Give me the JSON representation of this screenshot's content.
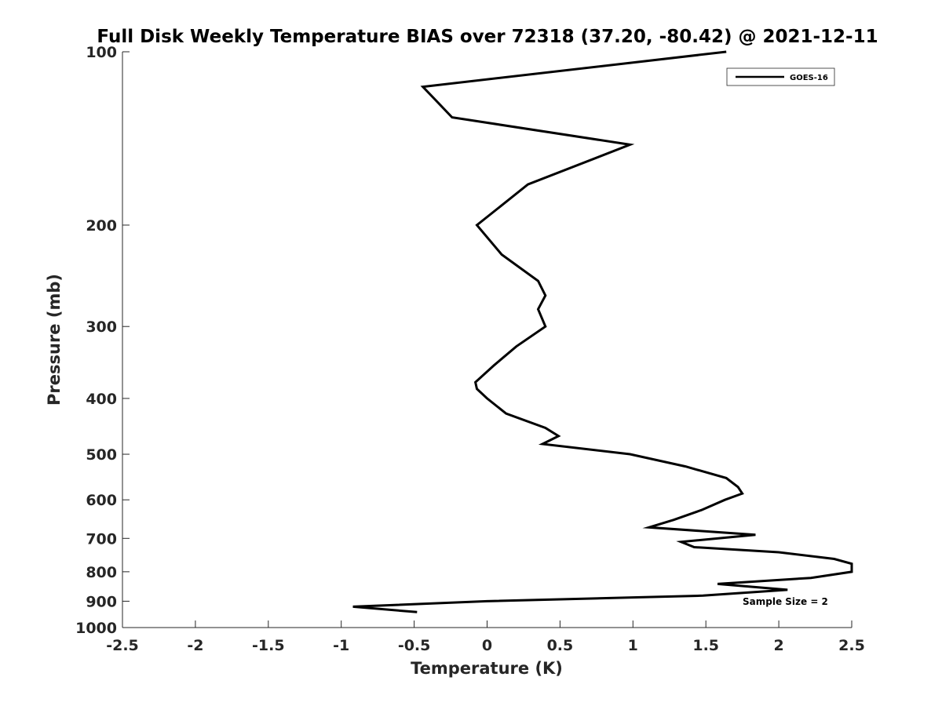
{
  "chart_data": {
    "type": "line",
    "title": "Full Disk Weekly Temperature BIAS over 72318 (37.20, -80.42) @ 2021-12-11",
    "xlabel": "Temperature (K)",
    "ylabel": "Pressure (mb)",
    "xlim": [
      -2.5,
      2.5
    ],
    "ylim": [
      1000,
      100
    ],
    "y_scale": "log",
    "y_reversed": true,
    "x_ticks": [
      "-2.5",
      "-2",
      "-1.5",
      "-1",
      "-0.5",
      "0",
      "0.5",
      "1",
      "1.5",
      "2",
      "2.5"
    ],
    "y_ticks": [
      "100",
      "200",
      "300",
      "400",
      "500",
      "600",
      "700",
      "800",
      "900",
      "1000"
    ],
    "grid": false,
    "legend_position": "top-right",
    "annotation": "Sample Size = 2",
    "series": [
      {
        "name": "GOES-16",
        "color": "#000000",
        "points": [
          {
            "x": 1.64,
            "p": 100
          },
          {
            "x": -0.44,
            "p": 115
          },
          {
            "x": -0.24,
            "p": 130
          },
          {
            "x": 0.98,
            "p": 145
          },
          {
            "x": 0.28,
            "p": 170
          },
          {
            "x": -0.07,
            "p": 200
          },
          {
            "x": 0.1,
            "p": 225
          },
          {
            "x": 0.35,
            "p": 250
          },
          {
            "x": 0.4,
            "p": 265
          },
          {
            "x": 0.35,
            "p": 280
          },
          {
            "x": 0.4,
            "p": 300
          },
          {
            "x": 0.2,
            "p": 325
          },
          {
            "x": 0.05,
            "p": 350
          },
          {
            "x": -0.08,
            "p": 375
          },
          {
            "x": -0.07,
            "p": 385
          },
          {
            "x": 0.0,
            "p": 400
          },
          {
            "x": 0.13,
            "p": 425
          },
          {
            "x": 0.4,
            "p": 450
          },
          {
            "x": 0.49,
            "p": 465
          },
          {
            "x": 0.38,
            "p": 480
          },
          {
            "x": 0.98,
            "p": 500
          },
          {
            "x": 1.36,
            "p": 525
          },
          {
            "x": 1.64,
            "p": 550
          },
          {
            "x": 1.72,
            "p": 570
          },
          {
            "x": 1.75,
            "p": 585
          },
          {
            "x": 1.63,
            "p": 600
          },
          {
            "x": 1.47,
            "p": 625
          },
          {
            "x": 1.28,
            "p": 650
          },
          {
            "x": 1.11,
            "p": 670
          },
          {
            "x": 1.84,
            "p": 690
          },
          {
            "x": 1.33,
            "p": 710
          },
          {
            "x": 1.42,
            "p": 725
          },
          {
            "x": 2.0,
            "p": 740
          },
          {
            "x": 2.38,
            "p": 760
          },
          {
            "x": 2.5,
            "p": 775
          },
          {
            "x": 2.5,
            "p": 800
          },
          {
            "x": 2.22,
            "p": 820
          },
          {
            "x": 1.58,
            "p": 840
          },
          {
            "x": 2.06,
            "p": 860
          },
          {
            "x": 1.48,
            "p": 880
          },
          {
            "x": 0.0,
            "p": 900
          },
          {
            "x": -0.92,
            "p": 920
          },
          {
            "x": -0.48,
            "p": 940
          }
        ]
      }
    ]
  }
}
